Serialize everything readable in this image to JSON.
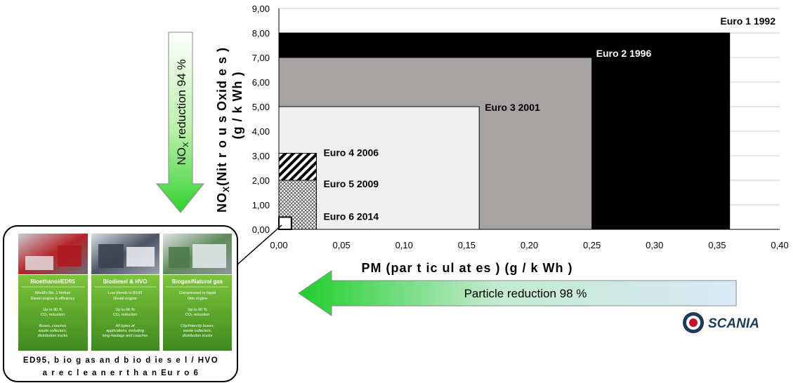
{
  "chart_data": {
    "type": "area",
    "xlabel": "PM (par t ic ul at es ) (g / k Wh )",
    "ylabel_main": "NO",
    "ylabel_sub": "X",
    "ylabel_rest": "(Nit r o u s Oxid e s )",
    "ylabel_line2": "(g / k Wh )",
    "xlim": [
      0,
      0.4
    ],
    "ylim": [
      0,
      9
    ],
    "x_ticks": [
      "0,00",
      "0,05",
      "0,10",
      "0,15",
      "0,20",
      "0,25",
      "0,30",
      "0,35",
      "0,40"
    ],
    "y_ticks": [
      "0,00",
      "1,00",
      "2,00",
      "3,00",
      "4,00",
      "5,00",
      "6,00",
      "7,00",
      "8,00",
      "9,00"
    ],
    "grid": true,
    "standards": [
      {
        "name": "Euro 1 1992",
        "pm": 0.36,
        "nox": 8.0,
        "fill": "#000000",
        "pattern": "solid"
      },
      {
        "name": "Euro 2 1996",
        "pm": 0.25,
        "nox": 7.0,
        "fill": "#a7a3a3",
        "pattern": "solid"
      },
      {
        "name": "Euro 3 2001",
        "pm": 0.16,
        "nox": 5.0,
        "fill": "#efefef",
        "pattern": "solid"
      },
      {
        "name": "Euro 4 2006",
        "pm": 0.03,
        "nox": 3.1,
        "fill": "#000000",
        "pattern": "diagonal"
      },
      {
        "name": "Euro 5 2009",
        "pm": 0.03,
        "nox": 2.0,
        "fill": "#000000",
        "pattern": "crosshatch"
      },
      {
        "name": "Euro 6 2014",
        "pm": 0.01,
        "nox": 0.5,
        "fill": "#ffffff",
        "pattern": "solid"
      }
    ]
  },
  "arrows": {
    "nox_main": "NO",
    "nox_sub": "X",
    "nox_rest": " reduction 94 %",
    "particle": "Particle reduction 98 %"
  },
  "fuels": [
    {
      "title": "Bioethanol/ED95",
      "line1": "World's No. 1 biofuel",
      "line2": "Diesel engine & efficiency",
      "co2a": "Up to 90 %",
      "co2b": "CO₂ reduction",
      "use1": "Buses, coaches",
      "use2": "waste collectors,",
      "use3": "distribution trucks"
    },
    {
      "title": "Biodiesel & HVO",
      "line1": "Low blends to B100",
      "line2": "Diesel engine",
      "co2a": "Up to 66 %",
      "co2b": "CO₂ reduction",
      "use1": "All types of",
      "use2": "applications, including",
      "use3": "long-haulage and coaches"
    },
    {
      "title": "Biogas/Natural gas",
      "line1": "Compressed or liquid",
      "line2": "Otto engine",
      "co2a": "Up to 90 %",
      "co2b": "CO₂ reduction",
      "use1": "City/Intercity buses,",
      "use2": "waste collectors,",
      "use3": "distribution trucks"
    }
  ],
  "caption_line1": "ED95, b io g as an d b io d ie s e l / HVO",
  "caption_line2": "a r e c l e a n e r t h a n Eu r o 6",
  "logo": {
    "text": "SCANIA",
    "color": "#1b3a5c"
  }
}
